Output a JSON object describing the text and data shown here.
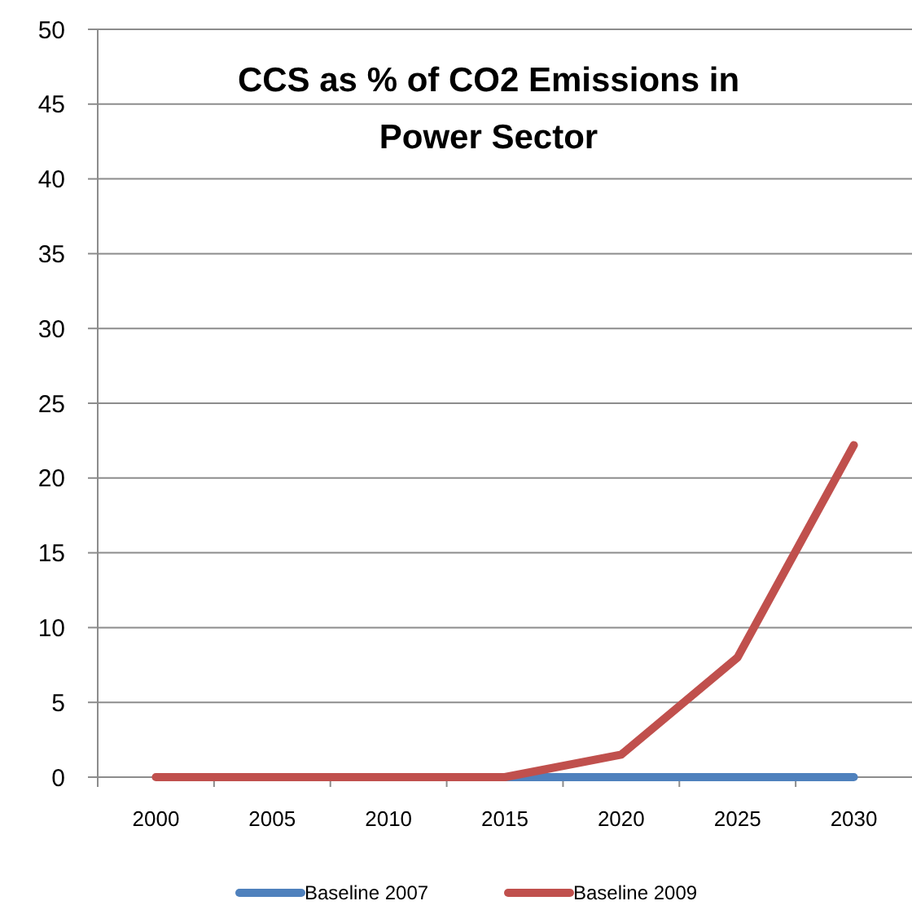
{
  "chart_data": {
    "type": "line",
    "title": "CCS as % of CO2 Emissions in Power Sector",
    "categories": [
      "2000",
      "2005",
      "2010",
      "2015",
      "2020",
      "2025",
      "2030"
    ],
    "series": [
      {
        "name": "Baseline 2007",
        "color": "#4f81bd",
        "values": [
          null,
          null,
          null,
          0,
          0,
          0,
          0
        ]
      },
      {
        "name": "Baseline 2009",
        "color": "#c0504d",
        "values": [
          0,
          0,
          0,
          0,
          1.5,
          8,
          22.2
        ]
      }
    ],
    "ylim": [
      0,
      50
    ],
    "yticks": [
      0,
      5,
      10,
      15,
      20,
      25,
      30,
      35,
      40,
      45,
      50
    ],
    "grid": "y",
    "legend": "bottom",
    "line_style": "solid"
  }
}
